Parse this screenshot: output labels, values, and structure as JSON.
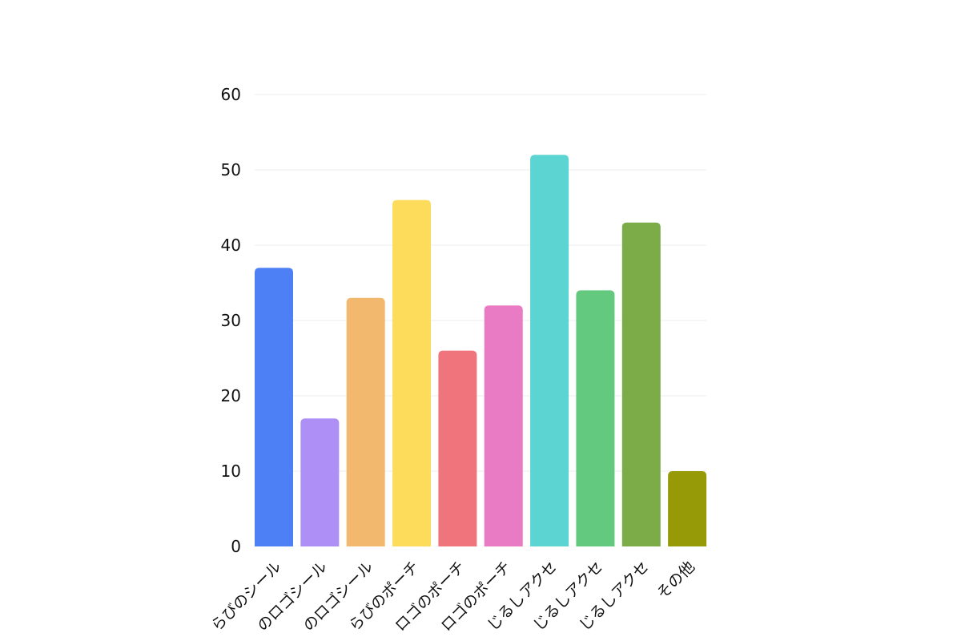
{
  "chart_data": {
    "type": "bar",
    "title": "",
    "xlabel": "",
    "ylabel": "",
    "ylim": [
      0,
      60
    ],
    "yticks": [
      0,
      10,
      20,
      30,
      40,
      50,
      60
    ],
    "grid": true,
    "legend": "none",
    "categories": [
      "らびのシール",
      "のロゴシール",
      "のロゴシール",
      "らびのポーチ",
      "ロゴのポーチ",
      "ロゴのポーチ",
      "じるしアクセ",
      "じるしアクセ",
      "じるしアクセ",
      "その他"
    ],
    "values": [
      37,
      17,
      33,
      46,
      26,
      32,
      52,
      34,
      43,
      10
    ],
    "colors": [
      "#4e80f5",
      "#ae8ff5",
      "#f2b86d",
      "#fddc5c",
      "#ef747c",
      "#e97bc4",
      "#5cd5d2",
      "#62c97f",
      "#7cac48",
      "#959a06"
    ]
  }
}
